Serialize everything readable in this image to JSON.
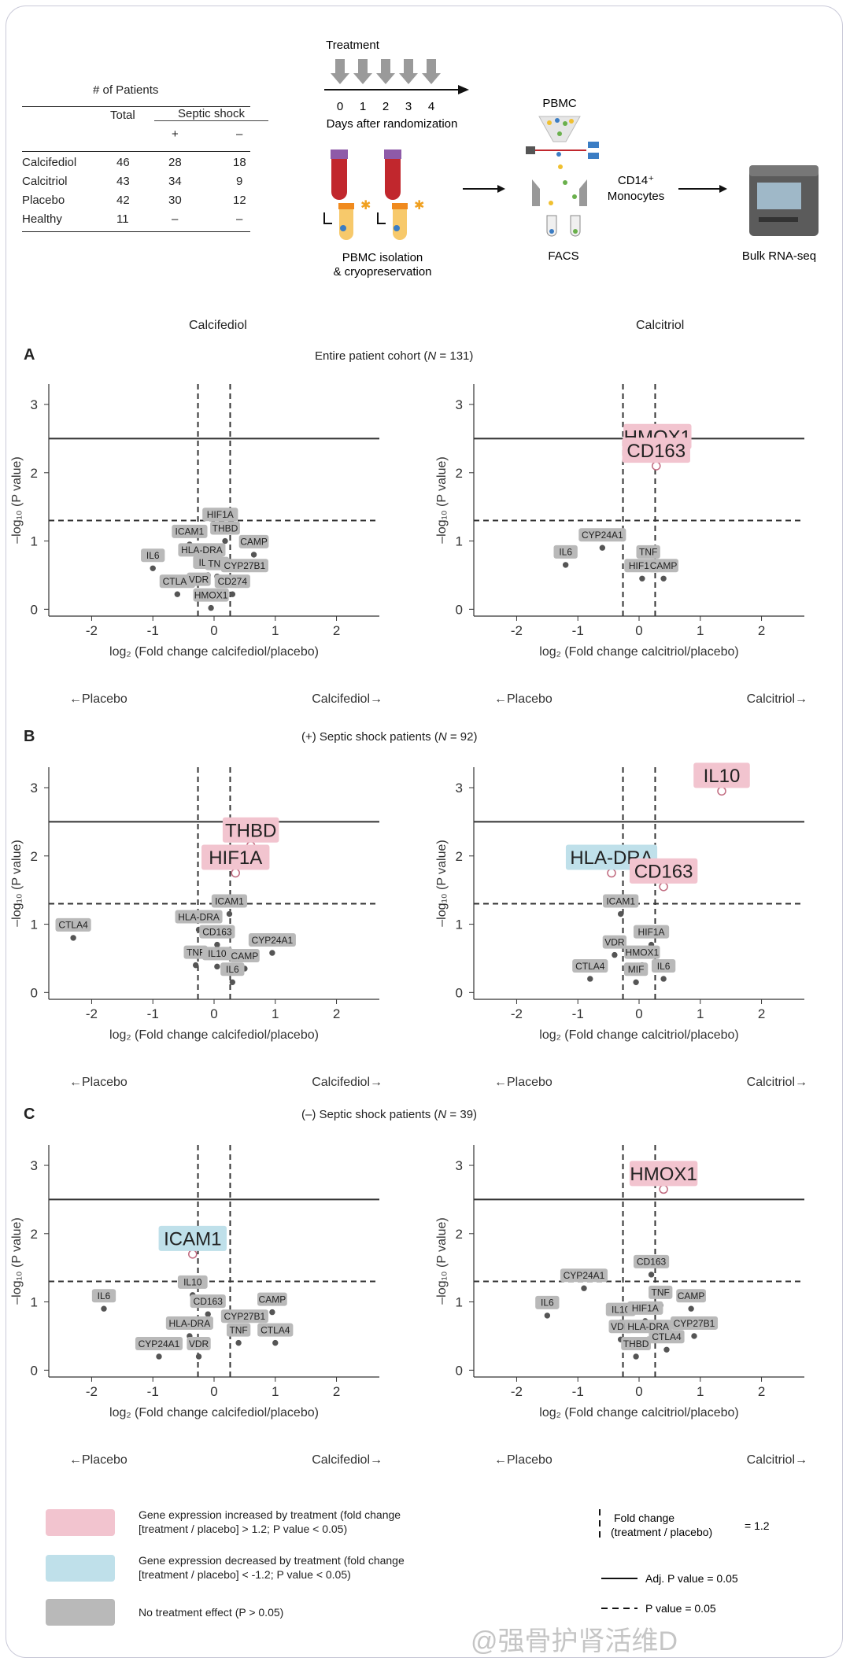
{
  "table": {
    "title": "# of Patients",
    "col_total": "Total",
    "col_septic": "Septic shock",
    "col_plus": "+",
    "col_minus": "–",
    "rows": [
      {
        "name": "Calcifediol",
        "total": "46",
        "plus": "28",
        "minus": "18"
      },
      {
        "name": "Calcitriol",
        "total": "43",
        "plus": "34",
        "minus": "9"
      },
      {
        "name": "Placebo",
        "total": "42",
        "plus": "30",
        "minus": "12"
      },
      {
        "name": "Healthy",
        "total": "11",
        "plus": "–",
        "minus": "–"
      }
    ]
  },
  "workflow": {
    "treatment": "Treatment",
    "days": [
      "0",
      "1",
      "2",
      "3",
      "4"
    ],
    "days_label": "Days after randomization",
    "pbmc_iso_1": "PBMC isolation",
    "pbmc_iso_2": "& cryopreservation",
    "pbmc": "PBMC",
    "facs": "FACS",
    "cd14_1": "CD14⁺",
    "cd14_2": "Monocytes",
    "bulk": "Bulk RNA-seq"
  },
  "column_titles": {
    "left": "Calcifediol",
    "right": "Calcitriol"
  },
  "rows": [
    {
      "letter": "A",
      "title_pre": "Entire patient cohort (",
      "title_n": "N",
      "title_post": " = 131)"
    },
    {
      "letter": "B",
      "title_pre": "(+) Septic shock patients (",
      "title_n": "N",
      "title_post": " = 92)"
    },
    {
      "letter": "C",
      "title_pre": "(–) Septic shock patients (",
      "title_n": "N",
      "title_post": " = 39)"
    }
  ],
  "axes": {
    "ylabel": "–log₁₀ (P value)",
    "xlabel_calcifediol": "log₂ (Fold change calcifediol/placebo)",
    "xlabel_calcitriol": "log₂ (Fold change calcitriol/placebo)",
    "dir_placebo": "←Placebo",
    "dir_calcifediol": "Calcifediol→",
    "dir_calcitriol": "Calcitriol→"
  },
  "legend": {
    "increased_1": "Gene expression increased by treatment (fold change",
    "increased_2": "[treatment / placebo] > 1.2; P value < 0.05)",
    "decreased_1": "Gene expression decreased by treatment (fold change",
    "decreased_2": "[treatment / placebo] < -1.2; P value < 0.05)",
    "noeffect": "No treatment effect (P > 0.05)",
    "fc_1": "Fold change",
    "fc_2": "(treatment / placebo)",
    "fc_val": "= 1.2",
    "adj": "Adj. P value = 0.05",
    "pval": "P value = 0.05",
    "watermark": "@强骨护肾活维D"
  },
  "colors": {
    "red": "#f2c4cf",
    "blue": "#bfe0ea",
    "gray": "#b9b9b9",
    "point_red": "#e8a0b0",
    "point_blue": "#8cc3d6"
  },
  "chart_data": [
    {
      "type": "scatter",
      "panel": "A-calcifediol",
      "xlabel": "log2 (Fold change calcifediol/placebo)",
      "ylabel": "-log10 (P value)",
      "xlim": [
        -2.7,
        2.7
      ],
      "ylim": [
        -0.1,
        3.3
      ],
      "xticks": [
        -2,
        -1,
        0,
        1,
        2
      ],
      "yticks": [
        0,
        1,
        2,
        3
      ],
      "fc_threshold": 0.263,
      "p_threshold": 1.3,
      "adj_threshold": 2.5,
      "points": [
        {
          "gene": "HIF1A",
          "x": 0.1,
          "y": 1.2,
          "cat": "none"
        },
        {
          "gene": "THBD",
          "x": 0.18,
          "y": 1.0,
          "cat": "none"
        },
        {
          "gene": "ICAM1",
          "x": -0.4,
          "y": 0.95,
          "cat": "none"
        },
        {
          "gene": "IL6",
          "x": -1.0,
          "y": 0.6,
          "cat": "none"
        },
        {
          "gene": "HLA-DRA",
          "x": -0.2,
          "y": 0.68,
          "cat": "none"
        },
        {
          "gene": "CAMP",
          "x": 0.65,
          "y": 0.8,
          "cat": "none"
        },
        {
          "gene": "IL10",
          "x": -0.1,
          "y": 0.5,
          "cat": "none"
        },
        {
          "gene": "TNF",
          "x": 0.05,
          "y": 0.48,
          "cat": "none"
        },
        {
          "gene": "CYP27B1",
          "x": 0.5,
          "y": 0.45,
          "cat": "none"
        },
        {
          "gene": "CTLA4",
          "x": -0.6,
          "y": 0.22,
          "cat": "none"
        },
        {
          "gene": "VDR",
          "x": -0.25,
          "y": 0.25,
          "cat": "none"
        },
        {
          "gene": "CD274",
          "x": 0.3,
          "y": 0.22,
          "cat": "none"
        },
        {
          "gene": "HMOX1",
          "x": -0.05,
          "y": 0.02,
          "cat": "none"
        }
      ]
    },
    {
      "type": "scatter",
      "panel": "A-calcitriol",
      "xlabel": "log2 (Fold change calcitriol/placebo)",
      "ylabel": "-log10 (P value)",
      "xlim": [
        -2.7,
        2.7
      ],
      "ylim": [
        -0.1,
        3.3
      ],
      "xticks": [
        -2,
        -1,
        0,
        1,
        2
      ],
      "yticks": [
        0,
        1,
        2,
        3
      ],
      "fc_threshold": 0.263,
      "p_threshold": 1.3,
      "adj_threshold": 2.5,
      "points": [
        {
          "gene": "HMOX1",
          "x": 0.3,
          "y": 2.3,
          "cat": "up"
        },
        {
          "gene": "CD163",
          "x": 0.28,
          "y": 2.1,
          "cat": "up"
        },
        {
          "gene": "CYP24A1",
          "x": -0.6,
          "y": 0.9,
          "cat": "none"
        },
        {
          "gene": "IL6",
          "x": -1.2,
          "y": 0.65,
          "cat": "none"
        },
        {
          "gene": "TNF",
          "x": 0.15,
          "y": 0.65,
          "cat": "none"
        },
        {
          "gene": "HIF1A",
          "x": 0.05,
          "y": 0.45,
          "cat": "none"
        },
        {
          "gene": "CAMP",
          "x": 0.4,
          "y": 0.45,
          "cat": "none"
        }
      ]
    },
    {
      "type": "scatter",
      "panel": "B-calcifediol",
      "xlabel": "log2 (Fold change calcifediol/placebo)",
      "ylabel": "-log10 (P value)",
      "xlim": [
        -2.7,
        2.7
      ],
      "ylim": [
        -0.1,
        3.3
      ],
      "xticks": [
        -2,
        -1,
        0,
        1,
        2
      ],
      "yticks": [
        0,
        1,
        2,
        3
      ],
      "fc_threshold": 0.263,
      "p_threshold": 1.3,
      "adj_threshold": 2.5,
      "points": [
        {
          "gene": "THBD",
          "x": 0.6,
          "y": 2.15,
          "cat": "up"
        },
        {
          "gene": "HIF1A",
          "x": 0.35,
          "y": 1.75,
          "cat": "up"
        },
        {
          "gene": "ICAM1",
          "x": 0.25,
          "y": 1.15,
          "cat": "none"
        },
        {
          "gene": "CTLA4",
          "x": -2.3,
          "y": 0.8,
          "cat": "none"
        },
        {
          "gene": "HLA-DRA",
          "x": -0.25,
          "y": 0.92,
          "cat": "none"
        },
        {
          "gene": "CD163",
          "x": 0.05,
          "y": 0.7,
          "cat": "none"
        },
        {
          "gene": "CYP24A1",
          "x": 0.95,
          "y": 0.58,
          "cat": "none"
        },
        {
          "gene": "TNF",
          "x": -0.3,
          "y": 0.4,
          "cat": "none"
        },
        {
          "gene": "IL10",
          "x": 0.05,
          "y": 0.38,
          "cat": "none"
        },
        {
          "gene": "CAMP",
          "x": 0.5,
          "y": 0.35,
          "cat": "none"
        },
        {
          "gene": "IL6",
          "x": 0.3,
          "y": 0.15,
          "cat": "none"
        }
      ]
    },
    {
      "type": "scatter",
      "panel": "B-calcitriol",
      "xlabel": "log2 (Fold change calcitriol/placebo)",
      "ylabel": "-log10 (P value)",
      "xlim": [
        -2.7,
        2.7
      ],
      "ylim": [
        -0.1,
        3.3
      ],
      "xticks": [
        -2,
        -1,
        0,
        1,
        2
      ],
      "yticks": [
        0,
        1,
        2,
        3
      ],
      "fc_threshold": 0.263,
      "p_threshold": 1.3,
      "adj_threshold": 2.5,
      "points": [
        {
          "gene": "IL10",
          "x": 1.35,
          "y": 2.95,
          "cat": "up"
        },
        {
          "gene": "HLA-DRA",
          "x": -0.45,
          "y": 1.75,
          "cat": "down"
        },
        {
          "gene": "CD163",
          "x": 0.4,
          "y": 1.55,
          "cat": "up"
        },
        {
          "gene": "ICAM1",
          "x": -0.3,
          "y": 1.15,
          "cat": "none"
        },
        {
          "gene": "HIF1A",
          "x": 0.2,
          "y": 0.7,
          "cat": "none"
        },
        {
          "gene": "VDR",
          "x": -0.4,
          "y": 0.55,
          "cat": "none"
        },
        {
          "gene": "HMOX1",
          "x": 0.05,
          "y": 0.4,
          "cat": "none"
        },
        {
          "gene": "CTLA4",
          "x": -0.8,
          "y": 0.2,
          "cat": "none"
        },
        {
          "gene": "MIF",
          "x": -0.05,
          "y": 0.15,
          "cat": "none"
        },
        {
          "gene": "IL6",
          "x": 0.4,
          "y": 0.2,
          "cat": "none"
        }
      ]
    },
    {
      "type": "scatter",
      "panel": "C-calcifediol",
      "xlabel": "log2 (Fold change calcifediol/placebo)",
      "ylabel": "-log10 (P value)",
      "xlim": [
        -2.7,
        2.7
      ],
      "ylim": [
        -0.1,
        3.3
      ],
      "xticks": [
        -2,
        -1,
        0,
        1,
        2
      ],
      "yticks": [
        0,
        1,
        2,
        3
      ],
      "fc_threshold": 0.263,
      "p_threshold": 1.3,
      "adj_threshold": 2.5,
      "points": [
        {
          "gene": "ICAM1",
          "x": -0.35,
          "y": 1.7,
          "cat": "down"
        },
        {
          "gene": "IL10",
          "x": -0.35,
          "y": 1.1,
          "cat": "none"
        },
        {
          "gene": "IL6",
          "x": -1.8,
          "y": 0.9,
          "cat": "none"
        },
        {
          "gene": "CD163",
          "x": -0.1,
          "y": 0.82,
          "cat": "none"
        },
        {
          "gene": "CAMP",
          "x": 0.95,
          "y": 0.85,
          "cat": "none"
        },
        {
          "gene": "CYP27B1",
          "x": 0.5,
          "y": 0.6,
          "cat": "none"
        },
        {
          "gene": "HLA-DRA",
          "x": -0.4,
          "y": 0.5,
          "cat": "none"
        },
        {
          "gene": "TNF",
          "x": 0.4,
          "y": 0.4,
          "cat": "none"
        },
        {
          "gene": "CTLA4",
          "x": 1.0,
          "y": 0.4,
          "cat": "none"
        },
        {
          "gene": "CYP24A1",
          "x": -0.9,
          "y": 0.2,
          "cat": "none"
        },
        {
          "gene": "VDR",
          "x": -0.25,
          "y": 0.2,
          "cat": "none"
        }
      ]
    },
    {
      "type": "scatter",
      "panel": "C-calcitriol",
      "xlabel": "log2 (Fold change calcitriol/placebo)",
      "ylabel": "-log10 (P value)",
      "xlim": [
        -2.7,
        2.7
      ],
      "ylim": [
        -0.1,
        3.3
      ],
      "xticks": [
        -2,
        -1,
        0,
        1,
        2
      ],
      "yticks": [
        0,
        1,
        2,
        3
      ],
      "fc_threshold": 0.263,
      "p_threshold": 1.3,
      "adj_threshold": 2.5,
      "points": [
        {
          "gene": "HMOX1",
          "x": 0.4,
          "y": 2.65,
          "cat": "up"
        },
        {
          "gene": "CD163",
          "x": 0.2,
          "y": 1.4,
          "cat": "none"
        },
        {
          "gene": "CYP24A1",
          "x": -0.9,
          "y": 1.2,
          "cat": "none"
        },
        {
          "gene": "IL6",
          "x": -1.5,
          "y": 0.8,
          "cat": "none"
        },
        {
          "gene": "TNF",
          "x": 0.35,
          "y": 0.95,
          "cat": "none"
        },
        {
          "gene": "CAMP",
          "x": 0.85,
          "y": 0.9,
          "cat": "none"
        },
        {
          "gene": "IL10",
          "x": -0.3,
          "y": 0.7,
          "cat": "none"
        },
        {
          "gene": "HIF1A",
          "x": 0.1,
          "y": 0.72,
          "cat": "none"
        },
        {
          "gene": "VDR",
          "x": -0.3,
          "y": 0.45,
          "cat": "none"
        },
        {
          "gene": "HLA-DRA",
          "x": 0.15,
          "y": 0.45,
          "cat": "none"
        },
        {
          "gene": "CYP27B1",
          "x": 0.9,
          "y": 0.5,
          "cat": "none"
        },
        {
          "gene": "THBD",
          "x": -0.05,
          "y": 0.2,
          "cat": "none"
        },
        {
          "gene": "CTLA4",
          "x": 0.45,
          "y": 0.3,
          "cat": "none"
        }
      ]
    }
  ]
}
